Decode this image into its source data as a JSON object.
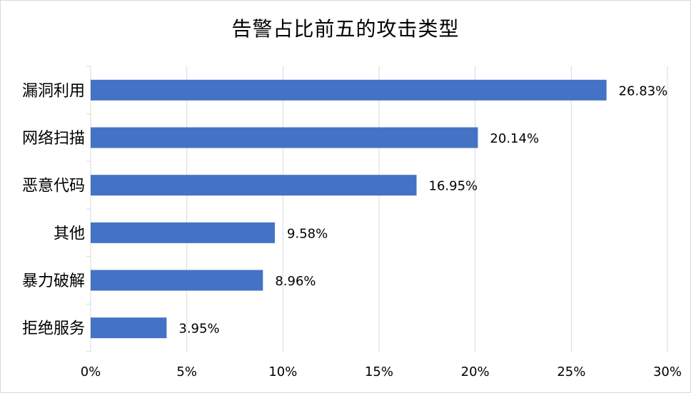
{
  "chart_data": {
    "type": "bar",
    "orientation": "horizontal",
    "title": "告警占比前五的攻击类型",
    "categories": [
      "漏洞利用",
      "网络扫描",
      "恶意代码",
      "其他",
      "暴力破解",
      "拒绝服务"
    ],
    "values": [
      26.83,
      20.14,
      16.95,
      9.58,
      8.96,
      3.95
    ],
    "value_labels": [
      "26.83%",
      "20.14%",
      "16.95%",
      "9.58%",
      "8.96%",
      "3.95%"
    ],
    "x_ticks": [
      "0%",
      "5%",
      "10%",
      "15%",
      "20%",
      "25%",
      "30%"
    ],
    "xlim": [
      0,
      30
    ],
    "grid": true,
    "legend": "none",
    "bar_color": "#4472C4",
    "grid_color": "#d9d9d9"
  }
}
